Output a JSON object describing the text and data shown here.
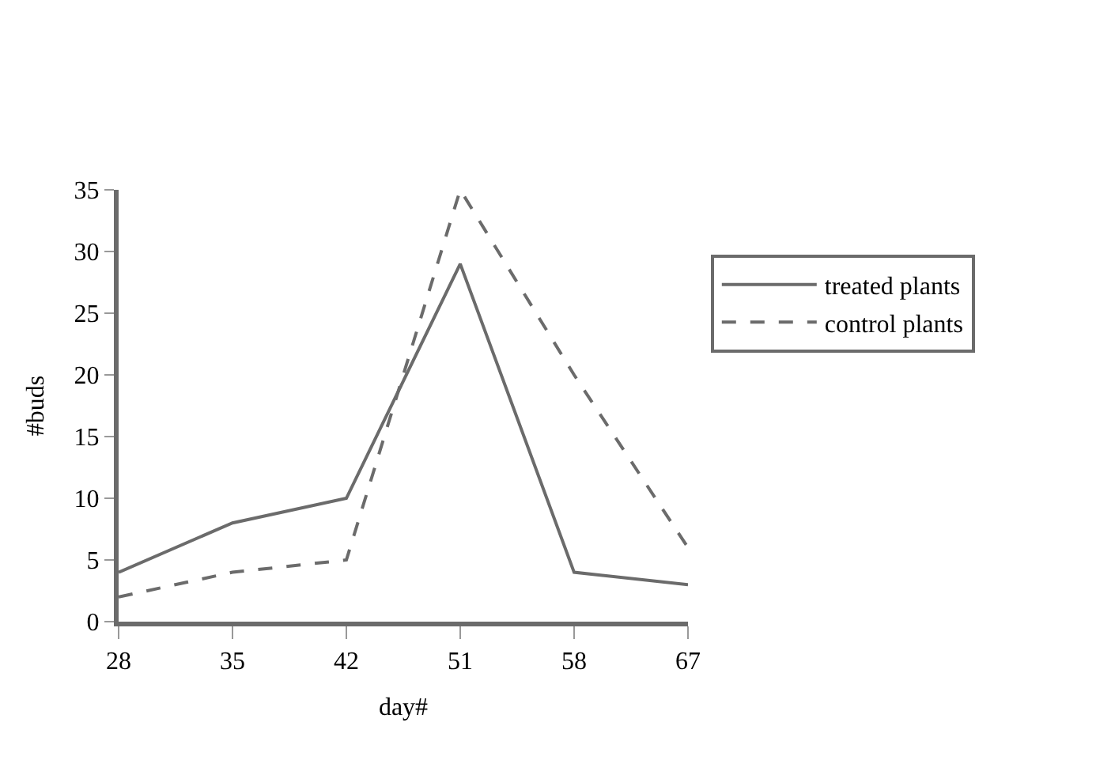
{
  "chart_data": {
    "type": "line",
    "xlabel": "day#",
    "ylabel": "#buds",
    "categories": [
      "28",
      "35",
      "42",
      "51",
      "58",
      "67"
    ],
    "series": [
      {
        "name": "treated plants",
        "color": "#6b6b6b",
        "line_style": "solid",
        "values": [
          4,
          8,
          10,
          29,
          4,
          3
        ]
      },
      {
        "name": "control plants",
        "color": "#6b6b6b",
        "line_style": "dashed",
        "values": [
          2,
          4,
          5,
          35,
          20,
          6
        ]
      }
    ],
    "ylim": [
      0,
      35
    ],
    "yticks": [
      0,
      5,
      10,
      15,
      20,
      25,
      30,
      35
    ],
    "legend": "right",
    "marker": "none"
  }
}
